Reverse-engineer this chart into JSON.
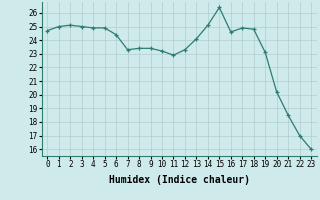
{
  "x": [
    0,
    1,
    2,
    3,
    4,
    5,
    6,
    7,
    8,
    9,
    10,
    11,
    12,
    13,
    14,
    15,
    16,
    17,
    18,
    19,
    20,
    21,
    22,
    23
  ],
  "y": [
    24.7,
    25.0,
    25.1,
    25.0,
    24.9,
    24.9,
    24.4,
    23.3,
    23.4,
    23.4,
    23.2,
    22.9,
    23.3,
    24.1,
    25.1,
    26.4,
    24.6,
    24.9,
    24.8,
    23.1,
    20.2,
    18.5,
    17.0,
    16.0
  ],
  "xlabel": "Humidex (Indice chaleur)",
  "xlim": [
    -0.5,
    23.5
  ],
  "ylim": [
    15.5,
    26.8
  ],
  "yticks": [
    16,
    17,
    18,
    19,
    20,
    21,
    22,
    23,
    24,
    25,
    26
  ],
  "xticks": [
    0,
    1,
    2,
    3,
    4,
    5,
    6,
    7,
    8,
    9,
    10,
    11,
    12,
    13,
    14,
    15,
    16,
    17,
    18,
    19,
    20,
    21,
    22,
    23
  ],
  "line_color": "#2d7d6e",
  "marker": "+",
  "bg_color": "#ceeaea",
  "grid_color": "#b0cccc",
  "xlabel_fontsize": 7,
  "tick_fontsize": 5.5,
  "linewidth": 0.9,
  "markersize": 3.5,
  "markeredgewidth": 0.9
}
